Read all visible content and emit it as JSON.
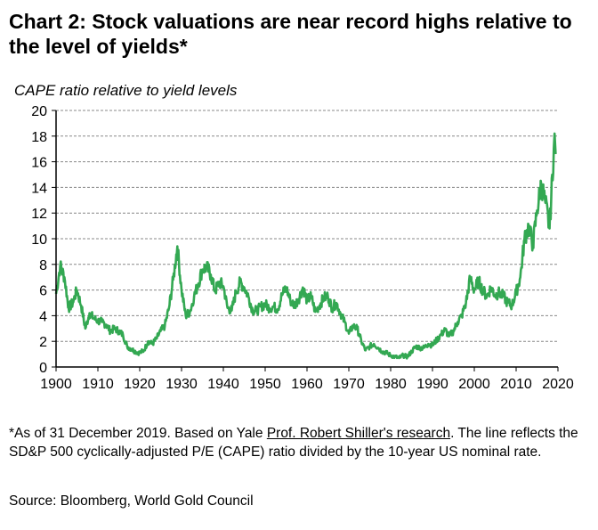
{
  "page": {
    "title": "Chart 2: Stock valuations are near record highs relative to the level of yields*",
    "footnote_prefix": "*As of 31 December 2019. Based on Yale ",
    "footnote_link": "Prof. Robert Shiller's research",
    "footnote_suffix": ". The line reflects the SD&P 500 cyclically-adjusted P/E (CAPE) ratio divided by the 10-year US nominal rate.",
    "source": "Source: Bloomberg, World Gold Council"
  },
  "colors": {
    "series": "#33A852",
    "grid": "#888888",
    "axis": "#000000"
  },
  "chart_data": {
    "type": "line",
    "title": "CAPE ratio relative to yield levels",
    "xlabel": "",
    "ylabel": "",
    "xlim": [
      1900,
      2020
    ],
    "ylim": [
      0,
      20
    ],
    "grid": true,
    "x_ticks": [
      1900,
      1910,
      1920,
      1930,
      1940,
      1950,
      1960,
      1970,
      1980,
      1990,
      2000,
      2010,
      2020
    ],
    "y_ticks": [
      0,
      2,
      4,
      6,
      8,
      10,
      12,
      14,
      16,
      18,
      20
    ],
    "series": [
      {
        "name": "",
        "x": [
          1900,
          1901,
          1902,
          1903,
          1904,
          1905,
          1906,
          1907,
          1908,
          1909,
          1910,
          1911,
          1912,
          1913,
          1914,
          1915,
          1916,
          1917,
          1918,
          1919,
          1920,
          1921,
          1922,
          1923,
          1924,
          1925,
          1926,
          1927,
          1928,
          1929,
          1930,
          1931,
          1932,
          1933,
          1934,
          1935,
          1936,
          1937,
          1938,
          1939,
          1940,
          1941,
          1942,
          1943,
          1944,
          1945,
          1946,
          1947,
          1948,
          1949,
          1950,
          1951,
          1952,
          1953,
          1954,
          1955,
          1956,
          1957,
          1958,
          1959,
          1960,
          1961,
          1962,
          1963,
          1964,
          1965,
          1966,
          1967,
          1968,
          1969,
          1970,
          1971,
          1972,
          1973,
          1974,
          1975,
          1976,
          1977,
          1978,
          1979,
          1980,
          1981,
          1982,
          1983,
          1984,
          1985,
          1986,
          1987,
          1988,
          1989,
          1990,
          1991,
          1992,
          1993,
          1994,
          1995,
          1996,
          1997,
          1998,
          1999,
          2000,
          2001,
          2002,
          2003,
          2004,
          2005,
          2006,
          2007,
          2008,
          2009,
          2010,
          2011,
          2012,
          2013,
          2014,
          2015,
          2016,
          2017,
          2018,
          2019
        ],
        "y": [
          5.7,
          7.9,
          7.0,
          4.6,
          5.0,
          6.0,
          4.8,
          3.0,
          4.2,
          3.8,
          3.6,
          3.5,
          3.3,
          2.8,
          3.0,
          2.8,
          2.5,
          1.6,
          1.4,
          1.2,
          1.1,
          1.3,
          2.0,
          1.8,
          2.2,
          2.8,
          3.2,
          4.6,
          6.8,
          9.4,
          6.0,
          4.0,
          4.3,
          5.5,
          6.5,
          7.6,
          7.8,
          7.2,
          5.9,
          6.6,
          6.3,
          4.6,
          4.4,
          5.8,
          6.6,
          6.2,
          5.5,
          4.4,
          4.4,
          4.7,
          4.9,
          4.6,
          4.7,
          4.5,
          5.6,
          6.2,
          5.2,
          4.8,
          5.3,
          6.2,
          5.2,
          5.5,
          4.3,
          4.8,
          5.4,
          5.5,
          4.6,
          5.0,
          4.2,
          3.5,
          2.6,
          3.2,
          3.0,
          2.0,
          1.3,
          1.6,
          1.8,
          1.5,
          1.2,
          1.1,
          0.9,
          0.8,
          0.7,
          0.9,
          0.8,
          1.2,
          1.6,
          1.5,
          1.5,
          1.8,
          1.7,
          2.1,
          2.5,
          2.9,
          2.4,
          2.8,
          3.5,
          4.0,
          5.0,
          6.9,
          6.0,
          6.7,
          6.0,
          5.5,
          6.2,
          5.6,
          5.8,
          5.5,
          5.0,
          4.8,
          5.8,
          7.0,
          10.0,
          11.0,
          9.5,
          12.2,
          14.3,
          12.8,
          10.8,
          17.0
        ]
      }
    ]
  }
}
